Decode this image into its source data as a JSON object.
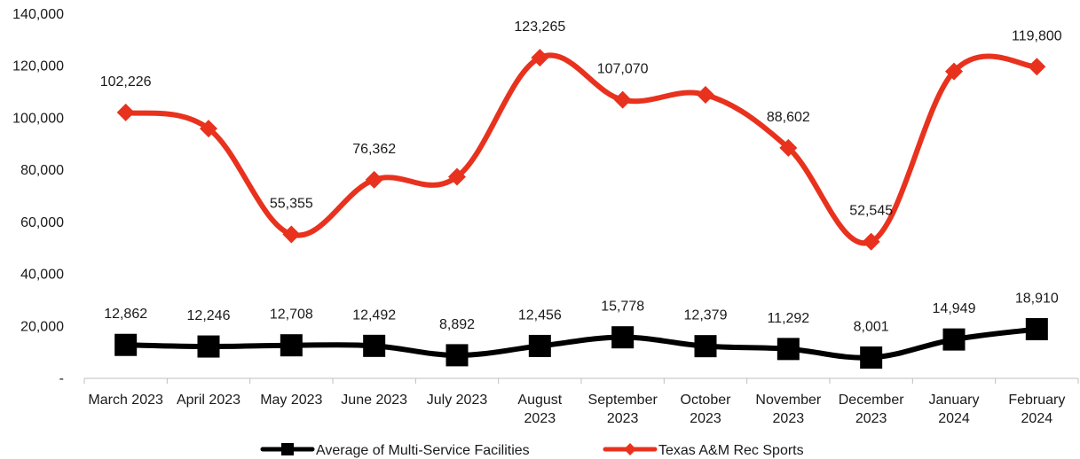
{
  "chart_data": {
    "type": "line",
    "categories": [
      [
        "March 2023"
      ],
      [
        "April 2023"
      ],
      [
        "May 2023"
      ],
      [
        "June 2023"
      ],
      [
        "July 2023"
      ],
      [
        "August",
        "2023"
      ],
      [
        "September",
        "2023"
      ],
      [
        "October",
        "2023"
      ],
      [
        "November",
        "2023"
      ],
      [
        "December",
        "2023"
      ],
      [
        "January",
        "2024"
      ],
      [
        "February",
        "2024"
      ]
    ],
    "y_ticks": [
      "-",
      "20,000",
      "40,000",
      "60,000",
      "80,000",
      "100,000",
      "120,000",
      "140,000"
    ],
    "ylim": [
      0,
      140000
    ],
    "grid": false,
    "legend_position": "bottom",
    "series": [
      {
        "name": "Average of Multi-Service Facilities",
        "color": "#000000",
        "marker": "square",
        "values": [
          12862,
          12246,
          12708,
          12492,
          8892,
          12456,
          15778,
          12379,
          11292,
          8001,
          14949,
          18910
        ],
        "labels": [
          "12,862",
          "12,246",
          "12,708",
          "12,492",
          "8,892",
          "12,456",
          "15,778",
          "12,379",
          "11,292",
          "8,001",
          "14,949",
          "18,910"
        ],
        "label_mask": [
          true,
          true,
          true,
          true,
          true,
          true,
          true,
          true,
          true,
          true,
          true,
          true
        ]
      },
      {
        "name": "Texas A&M Rec Sports",
        "color": "#e8321e",
        "marker": "diamond",
        "values": [
          102226,
          96000,
          55355,
          76362,
          77500,
          123265,
          107070,
          109000,
          88602,
          52545,
          118000,
          119800
        ],
        "labels": [
          "102,226",
          "",
          "55,355",
          "76,362",
          "",
          "123,265",
          "107,070",
          "",
          "88,602",
          "52,545",
          "",
          "119,800"
        ],
        "label_mask": [
          true,
          false,
          true,
          true,
          false,
          true,
          true,
          false,
          true,
          true,
          false,
          true
        ]
      }
    ]
  }
}
